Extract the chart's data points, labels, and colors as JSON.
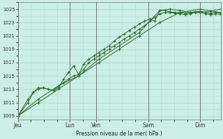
{
  "xlabel": "Pression niveau de la mer( hPa )",
  "bg_color": "#cceee4",
  "grid_color": "#aaddcc",
  "line_color": "#2d6a2d",
  "ylim": [
    1008.5,
    1026.0
  ],
  "yticks": [
    1009,
    1011,
    1013,
    1015,
    1017,
    1019,
    1021,
    1023,
    1025
  ],
  "x_day_labels": [
    "Jeu",
    "Lun",
    "Ven",
    "Sam",
    "Dim"
  ],
  "x_day_positions": [
    0,
    72,
    108,
    180,
    252
  ],
  "xlim": [
    0,
    280
  ],
  "series_straight": [
    [
      0,
      1009.0
    ],
    [
      28,
      1011.0
    ],
    [
      56,
      1013.0
    ],
    [
      84,
      1015.0
    ],
    [
      112,
      1017.0
    ],
    [
      140,
      1019.0
    ],
    [
      168,
      1021.0
    ],
    [
      196,
      1023.0
    ],
    [
      224,
      1024.5
    ],
    [
      252,
      1025.0
    ],
    [
      280,
      1024.5
    ]
  ],
  "series_main": [
    [
      0,
      1009.0
    ],
    [
      14,
      1011.0
    ],
    [
      21,
      1012.5
    ],
    [
      28,
      1013.0
    ],
    [
      35,
      1013.2
    ],
    [
      42,
      1013.0
    ],
    [
      49,
      1012.8
    ],
    [
      56,
      1013.5
    ],
    [
      63,
      1014.0
    ],
    [
      70,
      1014.5
    ],
    [
      77,
      1015.0
    ],
    [
      84,
      1015.2
    ],
    [
      91,
      1016.0
    ],
    [
      98,
      1017.0
    ],
    [
      105,
      1017.5
    ],
    [
      112,
      1018.0
    ],
    [
      119,
      1018.5
    ],
    [
      126,
      1019.0
    ],
    [
      133,
      1019.5
    ],
    [
      140,
      1020.0
    ],
    [
      147,
      1020.5
    ],
    [
      154,
      1021.0
    ],
    [
      161,
      1021.5
    ],
    [
      168,
      1022.0
    ],
    [
      175,
      1022.5
    ],
    [
      182,
      1023.2
    ],
    [
      189,
      1023.8
    ],
    [
      196,
      1024.3
    ],
    [
      203,
      1024.5
    ],
    [
      210,
      1024.5
    ],
    [
      217,
      1024.4
    ],
    [
      224,
      1024.3
    ],
    [
      231,
      1024.2
    ],
    [
      238,
      1024.3
    ],
    [
      245,
      1024.5
    ],
    [
      252,
      1024.5
    ],
    [
      259,
      1024.3
    ],
    [
      266,
      1024.2
    ],
    [
      273,
      1024.3
    ],
    [
      280,
      1024.2
    ]
  ],
  "series_dip": [
    [
      0,
      1009.0
    ],
    [
      14,
      1011.5
    ],
    [
      21,
      1012.5
    ],
    [
      28,
      1013.2
    ],
    [
      35,
      1013.2
    ],
    [
      42,
      1013.0
    ],
    [
      49,
      1012.8
    ],
    [
      56,
      1013.2
    ],
    [
      63,
      1014.5
    ],
    [
      70,
      1015.5
    ],
    [
      77,
      1016.5
    ],
    [
      84,
      1015.2
    ],
    [
      91,
      1016.8
    ],
    [
      98,
      1017.5
    ],
    [
      105,
      1018.0
    ],
    [
      112,
      1018.5
    ],
    [
      119,
      1019.0
    ],
    [
      126,
      1019.5
    ],
    [
      133,
      1020.2
    ],
    [
      140,
      1020.8
    ],
    [
      147,
      1021.3
    ],
    [
      154,
      1021.8
    ],
    [
      161,
      1022.3
    ],
    [
      168,
      1022.8
    ],
    [
      175,
      1023.2
    ],
    [
      182,
      1023.5
    ],
    [
      189,
      1023.2
    ],
    [
      196,
      1024.8
    ],
    [
      203,
      1024.8
    ],
    [
      210,
      1024.6
    ],
    [
      217,
      1024.5
    ],
    [
      224,
      1024.5
    ],
    [
      231,
      1024.4
    ],
    [
      238,
      1024.5
    ],
    [
      245,
      1024.6
    ],
    [
      252,
      1024.7
    ],
    [
      259,
      1024.5
    ],
    [
      266,
      1024.4
    ],
    [
      273,
      1024.5
    ],
    [
      280,
      1024.4
    ]
  ],
  "series_late": [
    [
      0,
      1009.0
    ],
    [
      28,
      1011.5
    ],
    [
      56,
      1013.5
    ],
    [
      84,
      1015.0
    ],
    [
      112,
      1017.5
    ],
    [
      140,
      1019.5
    ],
    [
      168,
      1021.5
    ],
    [
      182,
      1023.2
    ],
    [
      196,
      1024.8
    ],
    [
      210,
      1025.0
    ],
    [
      224,
      1024.8
    ],
    [
      238,
      1024.5
    ],
    [
      252,
      1024.5
    ],
    [
      266,
      1024.7
    ],
    [
      280,
      1025.0
    ]
  ]
}
